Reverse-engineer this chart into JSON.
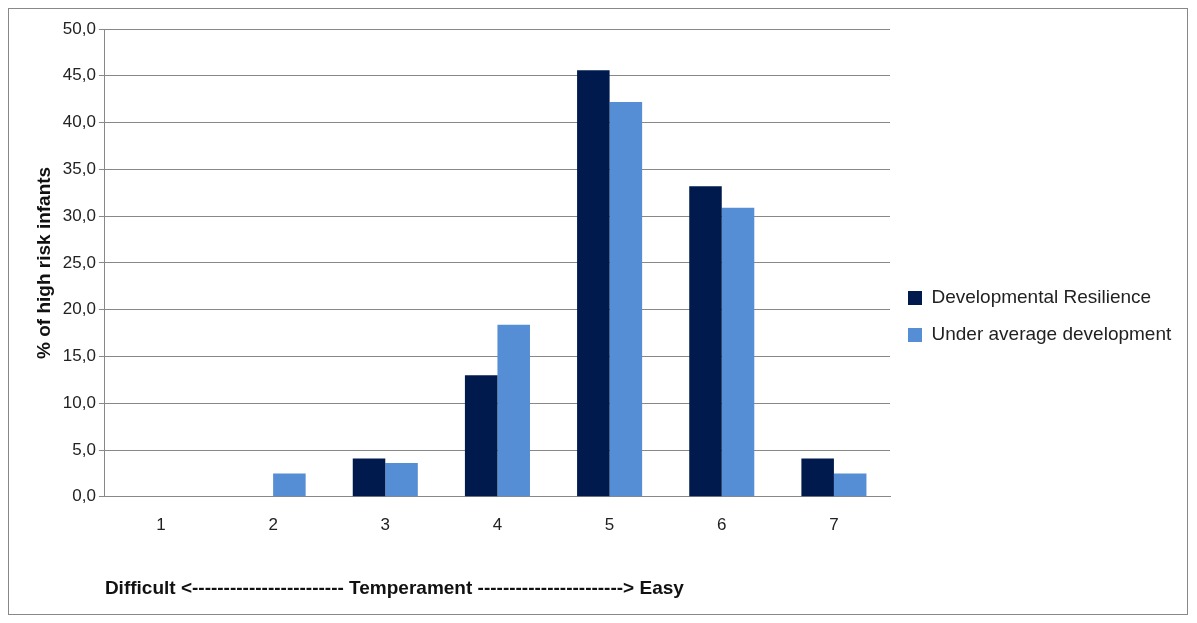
{
  "chart_data": {
    "type": "bar",
    "xlabel": "Difficult <------------------------ Temperament -----------------------> Easy",
    "ylabel": "% of high risk infants",
    "categories": [
      "1",
      "2",
      "3",
      "4",
      "5",
      "6",
      "7"
    ],
    "series": [
      {
        "name": "Developmental Resilience",
        "color": "#001a4d",
        "values": [
          0,
          0,
          4.1,
          13.0,
          45.6,
          33.2,
          4.1
        ]
      },
      {
        "name": "Under average development",
        "color": "#558ed5",
        "values": [
          0,
          2.5,
          3.6,
          18.4,
          42.2,
          30.9,
          2.5
        ]
      }
    ],
    "ylim": [
      0,
      50
    ],
    "yticks": [
      {
        "value": 0,
        "label": "0,0"
      },
      {
        "value": 5,
        "label": "5,0"
      },
      {
        "value": 10,
        "label": "10,0"
      },
      {
        "value": 15,
        "label": "15,0"
      },
      {
        "value": 20,
        "label": "20,0"
      },
      {
        "value": 25,
        "label": "25,0"
      },
      {
        "value": 30,
        "label": "30,0"
      },
      {
        "value": 35,
        "label": "35,0"
      },
      {
        "value": 40,
        "label": "40,0"
      },
      {
        "value": 45,
        "label": "45,0"
      },
      {
        "value": 50,
        "label": "50,0"
      }
    ],
    "grid": "y",
    "legend": "right"
  }
}
